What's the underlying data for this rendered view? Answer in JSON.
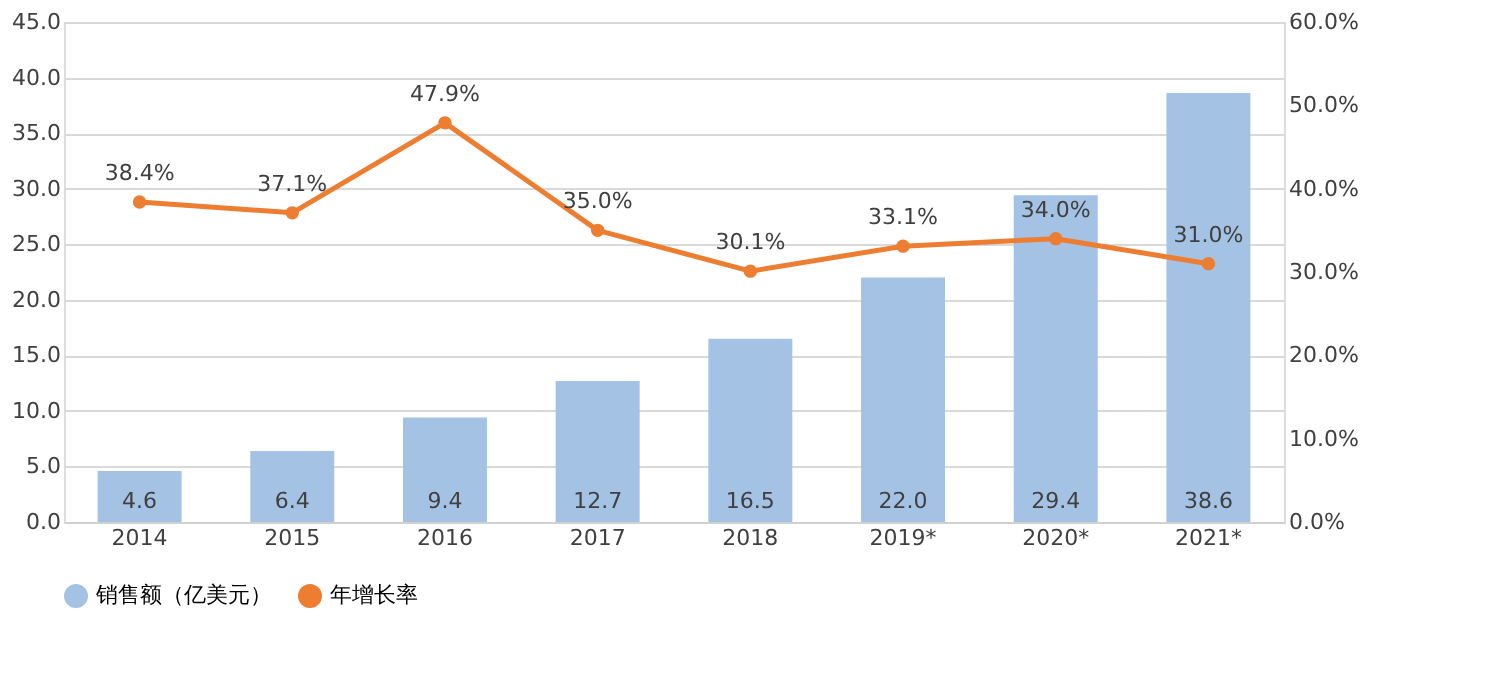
{
  "chart_data": {
    "type": "bar",
    "categories": [
      "2014",
      "2015",
      "2016",
      "2017",
      "2018",
      "2019*",
      "2020*",
      "2021*"
    ],
    "series": [
      {
        "name": "销售额（亿美元）",
        "color": "#a4c2e4",
        "values": [
          4.6,
          6.4,
          9.4,
          12.7,
          16.5,
          22.0,
          29.4,
          38.6
        ],
        "value_labels": [
          "4.6",
          "6.4",
          "9.4",
          "12.7",
          "16.5",
          "22.0",
          "29.4",
          "38.6"
        ]
      },
      {
        "name": "年增长率",
        "type": "line",
        "axis": "y2",
        "color": "#ed7d31",
        "values": [
          38.4,
          37.1,
          47.9,
          35.0,
          30.1,
          33.1,
          34.0,
          31.0
        ],
        "value_labels": [
          "38.4%",
          "37.1%",
          "47.9%",
          "35.0%",
          "30.1%",
          "33.1%",
          "34.0%",
          "31.0%"
        ]
      }
    ],
    "ylim": [
      0,
      45
    ],
    "yticks": [
      {
        "value": 0,
        "label": "0.0"
      },
      {
        "value": 5,
        "label": "5.0"
      },
      {
        "value": 10,
        "label": "10.0"
      },
      {
        "value": 15,
        "label": "15.0"
      },
      {
        "value": 20,
        "label": "20.0"
      },
      {
        "value": 25,
        "label": "25.0"
      },
      {
        "value": 30,
        "label": "30.0"
      },
      {
        "value": 35,
        "label": "35.0"
      },
      {
        "value": 40,
        "label": "40.0"
      },
      {
        "value": 45,
        "label": "45.0"
      }
    ],
    "y2lim": [
      0,
      60
    ],
    "y2ticks": [
      {
        "value": 0,
        "label": "0.0%"
      },
      {
        "value": 10,
        "label": "10.0%"
      },
      {
        "value": 20,
        "label": "20.0%"
      },
      {
        "value": 30,
        "label": "30.0%"
      },
      {
        "value": 40,
        "label": "40.0%"
      },
      {
        "value": 50,
        "label": "50.0%"
      },
      {
        "value": 60,
        "label": "60.0%"
      }
    ],
    "grid": "y",
    "legend": "bottom",
    "marker": "circle",
    "line_style": "solid"
  }
}
